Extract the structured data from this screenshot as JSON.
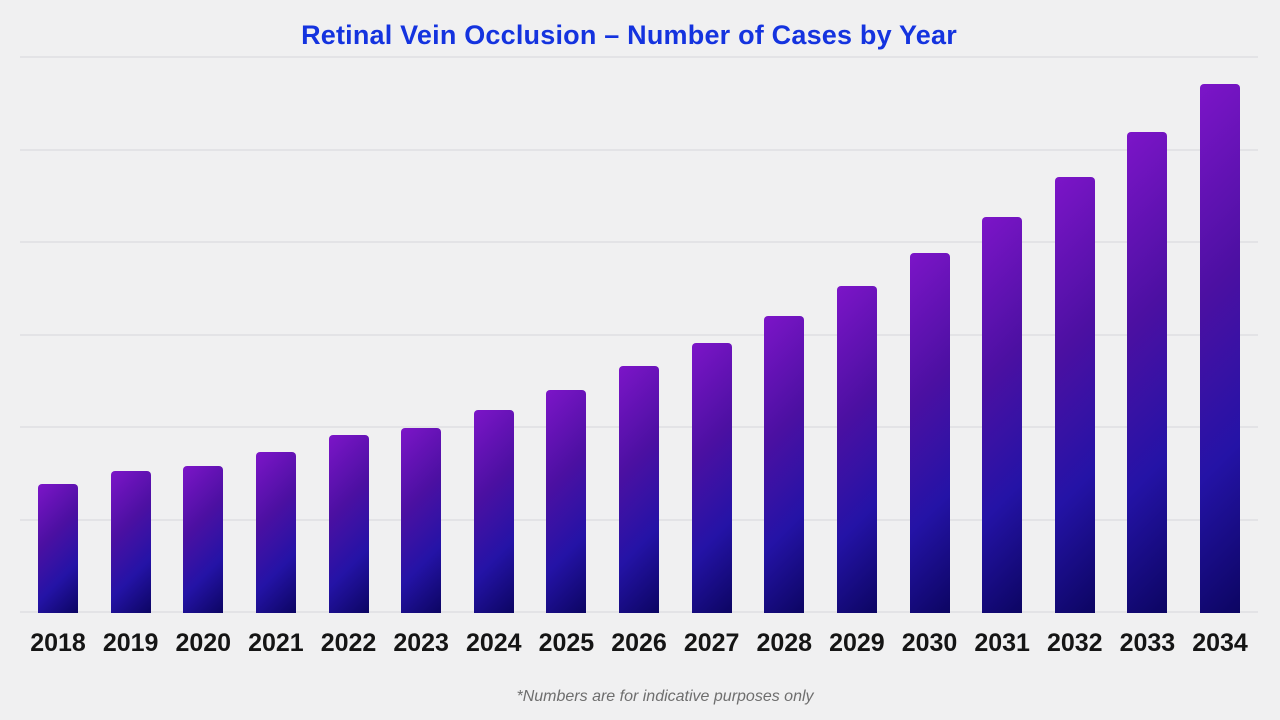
{
  "page": {
    "background": "#f0f0f1",
    "title": "Retinal Vein Occlusion – Number of Cases by Year",
    "title_color": "#1433df",
    "footnote": "*Numbers are for indicative purposes only",
    "footnote_color": "#6e6e6e"
  },
  "chart_data": {
    "type": "bar",
    "title": "Retinal Vein Occlusion – Number of Cases by Year",
    "categories": [
      "2018",
      "2019",
      "2020",
      "2021",
      "2022",
      "2023",
      "2024",
      "2025",
      "2026",
      "2027",
      "2028",
      "2029",
      "2030",
      "2031",
      "2032",
      "2033",
      "2034"
    ],
    "values": [
      139,
      153,
      159,
      174,
      192,
      200,
      219,
      241,
      267,
      292,
      321,
      354,
      389,
      428,
      471,
      520,
      572
    ],
    "value_units": "indicative (no y-axis labels shown)",
    "xlabel": "",
    "ylabel": "",
    "ylim": [
      0,
      600
    ],
    "gridline_step": 100,
    "grid": true,
    "y_tick_labels_visible": false,
    "legend_position": "none",
    "annotation": "*Numbers are for indicative purposes only",
    "gridline_color": "#e3e3e6",
    "bar_gradient": [
      "#7c15c8",
      "#4c10a2",
      "#2413a6",
      "#0c0562"
    ],
    "x_tick_label_color": "#151515"
  }
}
